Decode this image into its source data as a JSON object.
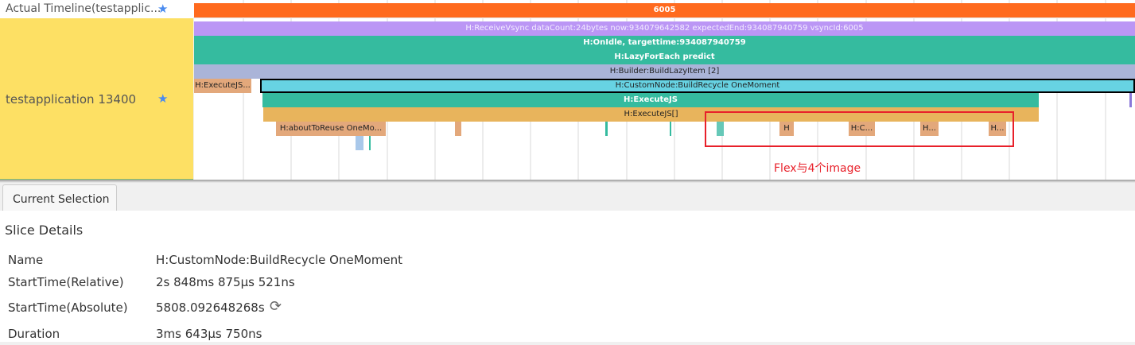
{
  "tracks": {
    "actual_timeline": {
      "label": "Actual Timeline(testapplic...",
      "star_icon": "star-icon"
    },
    "process": {
      "label": "testapplication 13400",
      "star_icon": "star-icon"
    }
  },
  "slices": {
    "frame": "6005",
    "receive_vsync": "H:ReceiveVsync dataCount:24bytes now:934079642582 expectedEnd:934087940759 vsyncId:6005",
    "on_idle": "H:OnIdle, targettime:934087940759",
    "lazy_for_each": "H:LazyForEach predict",
    "builder": "H:Builder:BuildLazyItem [2]",
    "execute_js_short": "H:ExecuteJS...",
    "custom_node": "H:CustomNode:BuildRecycle OneMoment",
    "execute_js": "H:ExecuteJS",
    "execute_js_brackets": "H:ExecuteJS[]",
    "about_to_reuse": "H:aboutToReuse OneMo...",
    "h1": "H",
    "h2": "H:C...",
    "h3": "H...",
    "h4": "H..."
  },
  "annotation": {
    "text": "Flex与4个image",
    "color": "#e8202a"
  },
  "colors": {
    "frame": "#ff6a1e",
    "vsync": "#bb96f5",
    "teal": "#35bb9f",
    "builder": "#aab4d8",
    "custom_node": "#67d3e3",
    "tan": "#e3a87b",
    "gold": "#e8b45c",
    "process_bg": "#fde064"
  },
  "bottom_panel": {
    "tab": "Current Selection",
    "title": "Slice Details",
    "rows": [
      {
        "key": "Name",
        "value": "H:CustomNode:BuildRecycle OneMoment"
      },
      {
        "key": "StartTime(Relative)",
        "value": "2s 848ms 875μs 521ns"
      },
      {
        "key": "StartTime(Absolute)",
        "value": "5808.092648268s"
      },
      {
        "key": "Duration",
        "value": "3ms 643μs 750ns"
      }
    ],
    "refresh_icon": "refresh-icon"
  }
}
